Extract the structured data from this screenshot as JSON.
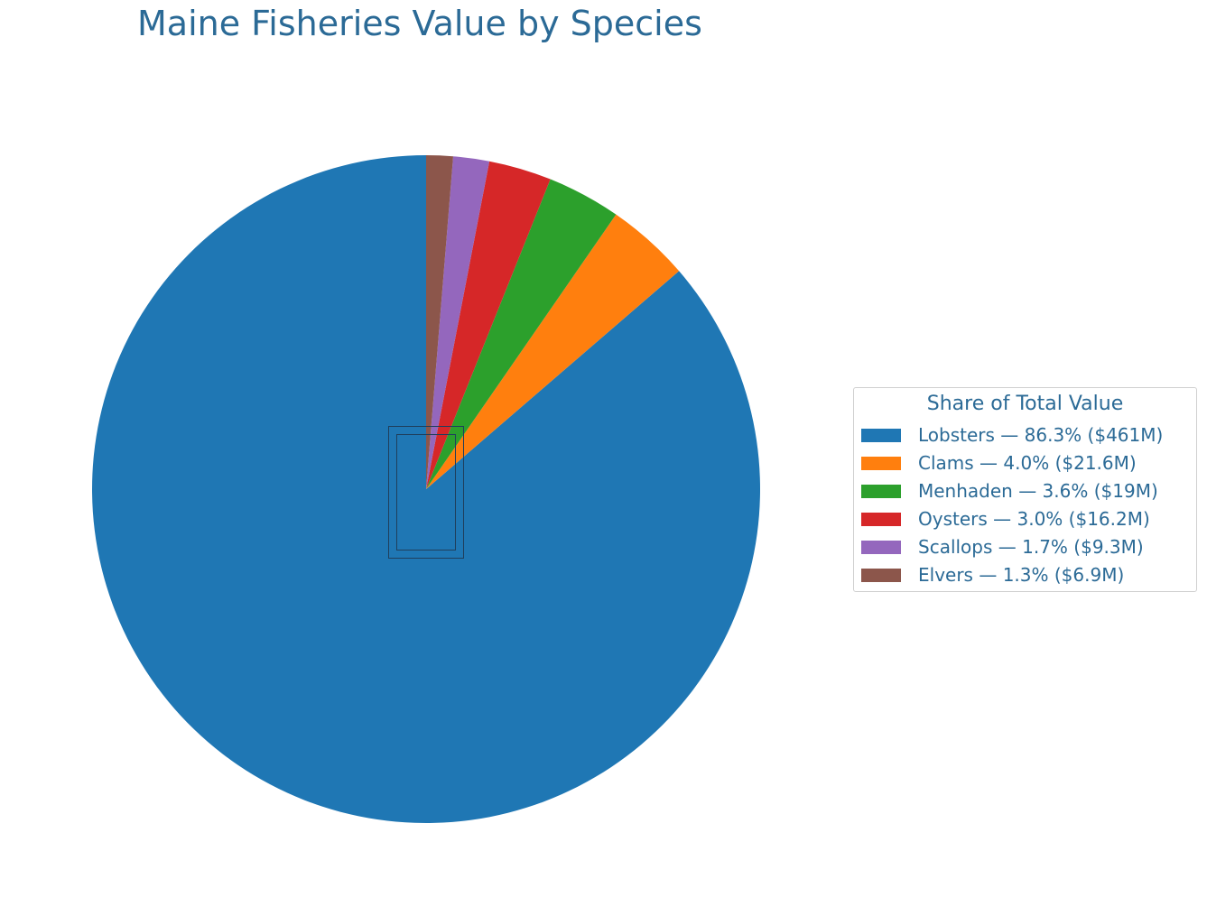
{
  "chart_data": {
    "type": "pie",
    "title": "Maine Fisheries Value by Species",
    "legend_title": "Share of Total Value",
    "legend_position": "right",
    "start_angle_deg": 90,
    "direction": "counterclockwise",
    "slices": [
      {
        "name": "Lobsters",
        "value": 461.0,
        "percent": 86.3,
        "color": "#1f77b4",
        "label": "Lobsters — 86.3% ($461M)"
      },
      {
        "name": "Clams",
        "value": 21.6,
        "percent": 4.0,
        "color": "#ff7f0e",
        "label": "Clams — 4.0% ($21.6M)"
      },
      {
        "name": "Menhaden",
        "value": 19.0,
        "percent": 3.6,
        "color": "#2ca02c",
        "label": "Menhaden — 3.6% ($19M)"
      },
      {
        "name": "Oysters",
        "value": 16.2,
        "percent": 3.0,
        "color": "#d62728",
        "label": "Oysters — 3.0% ($16.2M)"
      },
      {
        "name": "Scallops",
        "value": 9.3,
        "percent": 1.7,
        "color": "#9467bd",
        "label": "Scallops — 1.7% ($9.3M)"
      },
      {
        "name": "Elvers",
        "value": 6.9,
        "percent": 1.3,
        "color": "#8c564b",
        "label": "Elvers — 1.3% ($6.9M)"
      }
    ]
  }
}
